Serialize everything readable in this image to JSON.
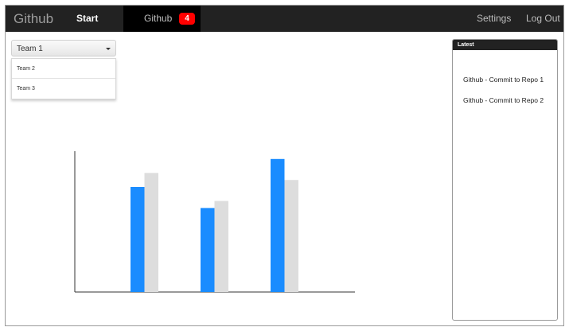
{
  "navbar": {
    "brand": "Github",
    "start_label": "Start",
    "github_label": "Github",
    "github_badge": "4",
    "settings_label": "Settings",
    "logout_label": "Log Out",
    "badge_color": "#ff0000"
  },
  "team_select": {
    "selected": "Team 1",
    "options": [
      "Team 2",
      "Team 3"
    ]
  },
  "latest_panel": {
    "title": "Latest",
    "items": [
      "Github - Commit to Repo 1",
      "Github - Commit to Repo 2"
    ]
  },
  "chart_data": {
    "type": "bar",
    "categories": [
      "",
      "",
      ""
    ],
    "series": [
      {
        "values": [
          75,
          60,
          95
        ],
        "color": "#1a8cff"
      },
      {
        "values": [
          85,
          65,
          80
        ],
        "color": "#dddddd"
      }
    ],
    "ylim": [
      0,
      100
    ],
    "grid": false,
    "title": "",
    "xlabel": "",
    "ylabel": ""
  }
}
